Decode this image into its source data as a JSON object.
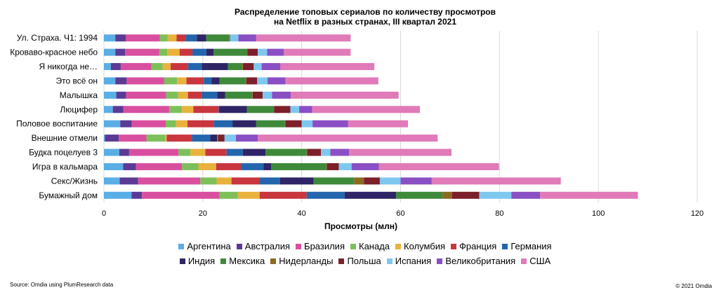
{
  "chart_data": {
    "type": "bar",
    "orientation": "horizontal",
    "stacked": true,
    "title_lines": [
      "Распределение топовых сериалов по количеству просмотров",
      "на Netflix в разных странах, III квартал 2021"
    ],
    "xlabel": "Просмотры (млн)",
    "ylabel": "",
    "xlim": [
      0,
      120
    ],
    "xticks": [
      "0",
      "20",
      "40",
      "60",
      "80",
      "100",
      "120"
    ],
    "xtick_values": [
      0,
      20,
      40,
      60,
      80,
      100,
      120
    ],
    "legend_position": "bottom",
    "categories": [
      "Ул. Страха. Ч1: 1994",
      "Кроваво-красное небо",
      "Я никогда не…",
      "Это всё он",
      "Малышка",
      "Люцифер",
      "Половое воспитание",
      "Внешние отмели",
      "Будка поцелуев 3",
      "Игра в кальмара",
      "Секс/Жизнь",
      "Бумажный дом"
    ],
    "series": [
      {
        "name": "Аргентина",
        "color": "#5aaee6",
        "values": [
          2.3,
          2.3,
          1.4,
          2.3,
          2.5,
          1.8,
          3.3,
          0.2,
          3.1,
          3.9,
          3.2,
          5.6
        ]
      },
      {
        "name": "Австралия",
        "color": "#5b3a96",
        "values": [
          2.1,
          2.0,
          2.0,
          2.3,
          2.0,
          2.1,
          2.3,
          2.8,
          2.0,
          2.6,
          3.7,
          2.1
        ]
      },
      {
        "name": "Бразилия",
        "color": "#d94fa0",
        "values": [
          6.9,
          6.9,
          6.2,
          7.6,
          8.1,
          9.3,
          6.9,
          5.6,
          10.0,
          9.3,
          12.6,
          15.7
        ]
      },
      {
        "name": "Канада",
        "color": "#7dc05a",
        "values": [
          1.6,
          1.6,
          2.3,
          2.6,
          2.4,
          2.6,
          2.1,
          3.8,
          2.4,
          3.3,
          3.3,
          3.7
        ]
      },
      {
        "name": "Колумбия",
        "color": "#e8b23c",
        "values": [
          1.8,
          2.5,
          1.6,
          1.9,
          2.0,
          2.3,
          2.3,
          0.3,
          3.0,
          3.6,
          3.0,
          4.4
        ]
      },
      {
        "name": "Франция",
        "color": "#c9363e",
        "values": [
          1.8,
          2.6,
          3.5,
          3.5,
          2.8,
          5.1,
          5.3,
          5.1,
          4.3,
          5.0,
          5.6,
          9.5
        ]
      },
      {
        "name": "Германия",
        "color": "#2466ad",
        "values": [
          2.3,
          2.8,
          2.8,
          1.6,
          3.1,
          0.1,
          3.8,
          3.7,
          3.3,
          4.6,
          4.2,
          7.7
        ]
      },
      {
        "name": "Индия",
        "color": "#2e2466",
        "values": [
          1.9,
          1.5,
          5.3,
          1.6,
          1.6,
          5.6,
          4.8,
          1.4,
          4.6,
          1.5,
          6.8,
          10.4
        ]
      },
      {
        "name": "Мексика",
        "color": "#3e8a3a",
        "values": [
          4.6,
          6.7,
          2.9,
          5.3,
          5.5,
          5.4,
          5.8,
          0.1,
          8.3,
          11.2,
          8.2,
          9.4
        ]
      },
      {
        "name": "Нидерланды",
        "color": "#8c6a1e",
        "values": [
          0.1,
          0.1,
          0.1,
          0.1,
          0.1,
          0.1,
          0.1,
          0.1,
          0.1,
          0.1,
          2.0,
          1.9
        ]
      },
      {
        "name": "Польша",
        "color": "#7d1f2a",
        "values": [
          0.1,
          2.1,
          2.2,
          2.2,
          2.0,
          3.3,
          3.3,
          1.3,
          2.8,
          2.4,
          3.2,
          5.5
        ]
      },
      {
        "name": "Испания",
        "color": "#7ec8f0",
        "values": [
          1.7,
          1.9,
          1.6,
          2.1,
          1.9,
          1.8,
          2.2,
          2.3,
          1.9,
          2.6,
          4.2,
          6.5
        ]
      },
      {
        "name": "Великобритания",
        "color": "#8a4fc4",
        "values": [
          3.6,
          3.4,
          3.8,
          3.6,
          3.8,
          2.6,
          7.2,
          4.4,
          3.8,
          5.5,
          6.3,
          5.8
        ]
      },
      {
        "name": "США",
        "color": "#e07ab8",
        "values": [
          19.1,
          13.5,
          19.0,
          18.8,
          21.8,
          21.8,
          12.1,
          36.4,
          20.7,
          24.3,
          26.1,
          19.8
        ]
      }
    ]
  },
  "footer": {
    "source": "Source: Omdia using PlumResearch data",
    "copyright": "© 2021 Omdia"
  }
}
